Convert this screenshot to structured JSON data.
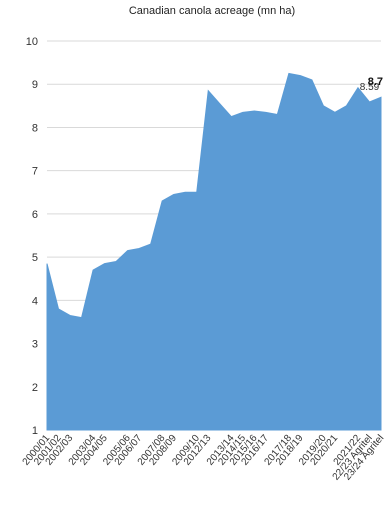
{
  "chart_data": {
    "type": "area",
    "title": "Canadian canola acreage (mn ha)",
    "xlabel": "",
    "ylabel": "",
    "ylim": [
      1,
      10
    ],
    "yticks": [
      1,
      2,
      3,
      4,
      5,
      6,
      7,
      8,
      9,
      10
    ],
    "grid": true,
    "color": "#5b9bd5",
    "categories": [
      "2000/01",
      "2001/02",
      "2002/03",
      "",
      "2003/04",
      "2004/05",
      "",
      "2005/06",
      "2006/07",
      "",
      "2007/08",
      "2008/09",
      "",
      "2009/10",
      "2012/13",
      "",
      "2013/14",
      "2014/15",
      "2015/16",
      "2016/17",
      "",
      "2017/18",
      "2018/19",
      "",
      "2019/20",
      "2020/21",
      "",
      "2021/22",
      "22/23 Agritel",
      "23/24 Agritel"
    ],
    "values": [
      4.85,
      3.8,
      3.65,
      3.6,
      4.7,
      4.85,
      4.9,
      5.15,
      5.2,
      5.3,
      6.3,
      6.45,
      6.5,
      6.5,
      8.85,
      8.55,
      8.25,
      8.35,
      8.38,
      8.35,
      8.3,
      9.25,
      9.2,
      9.1,
      8.5,
      8.35,
      8.5,
      8.92,
      8.59,
      8.7
    ],
    "data_labels": [
      {
        "category_index": 28,
        "text": "8.59",
        "bold": false
      },
      {
        "category_index": 29,
        "text": "8.7",
        "bold": true
      }
    ]
  }
}
